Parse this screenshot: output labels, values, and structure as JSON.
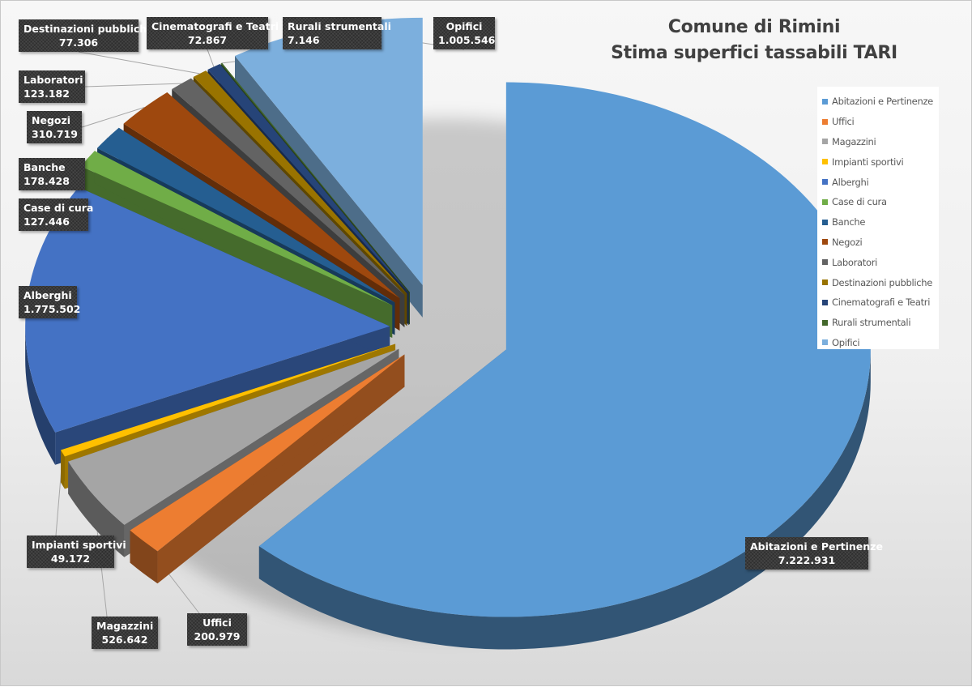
{
  "chart_data": {
    "type": "pie",
    "variant": "3d-exploded",
    "title": [
      "Comune di Rimini",
      "Stima superfici tassabili TARI"
    ],
    "legend_position": "right",
    "series": [
      {
        "categories": [
          "Abitazioni e Pertinenze",
          "Uffici",
          "Magazzini",
          "Impianti sportivi",
          "Alberghi",
          "Case di cura",
          "Banche",
          "Negozi",
          "Laboratori",
          "Destinazioni pubbliche",
          "Cinematografi e Teatri",
          "Rurali strumentali",
          "Opifici"
        ],
        "values": [
          7222931,
          200979,
          526642,
          49172,
          1775502,
          127446,
          178428,
          310719,
          123182,
          77306,
          72867,
          7146,
          1005546
        ],
        "value_labels": [
          "7.222.931",
          "200.979",
          "526.642",
          "49.172",
          "1.775.502",
          "127.446",
          "178.428",
          "310.719",
          "123.182",
          "77.306",
          "72.867",
          "7.146",
          "1.005.546"
        ],
        "label_names": [
          "Abitazioni  e Pertinenze",
          "Uffici",
          "Magazzini",
          "Impianti sportivi",
          "Alberghi",
          "Case di cura",
          "Banche",
          "Negozi",
          "Laboratori",
          "Destinazioni pubbliche",
          "Cinematografi  e Teatri",
          "Rurali strumentali",
          "Opifici"
        ],
        "colors": [
          "#5b9bd5",
          "#ed7d31",
          "#a5a5a5",
          "#ffc000",
          "#4472c4",
          "#70ad47",
          "#255e91",
          "#9e480e",
          "#636363",
          "#997300",
          "#264478",
          "#43682b",
          "#7cafdd"
        ]
      }
    ]
  }
}
